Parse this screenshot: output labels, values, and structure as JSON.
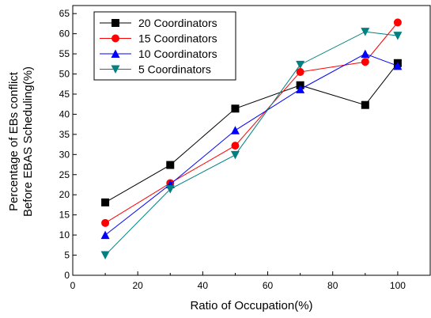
{
  "chart_data": {
    "type": "line",
    "xlabel": "Ratio of Occupation(%)",
    "ylabel_lines": [
      "Percentage of EBs conflict",
      "Before EBAS Scheduling(%)"
    ],
    "xlim": [
      0,
      110
    ],
    "ylim": [
      0,
      67
    ],
    "x_ticks": [
      0,
      20,
      40,
      60,
      80,
      100
    ],
    "y_ticks": [
      0,
      5,
      10,
      15,
      20,
      25,
      30,
      35,
      40,
      45,
      50,
      55,
      60,
      65
    ],
    "x_tick_labels": [
      "0",
      "20",
      "40",
      "60",
      "80",
      "100"
    ],
    "y_tick_labels": [
      "0",
      "5",
      "10",
      "15",
      "20",
      "25",
      "30",
      "35",
      "40",
      "45",
      "50",
      "55",
      "60",
      "65"
    ],
    "x": [
      10,
      30,
      50,
      70,
      90,
      100
    ],
    "legend_position": "top-left",
    "grid": false,
    "series": [
      {
        "name": "20 Coordinators",
        "color": "#000000",
        "marker": "square",
        "values": [
          18.1,
          27.4,
          41.4,
          47.2,
          42.3,
          52.7
        ]
      },
      {
        "name": "15 Coordinators",
        "color": "#ff0000",
        "marker": "circle",
        "values": [
          13.0,
          22.9,
          32.2,
          50.5,
          53.0,
          62.8
        ]
      },
      {
        "name": "10 Coordinators",
        "color": "#0000ff",
        "marker": "triangle-up",
        "values": [
          10.0,
          22.6,
          36.0,
          46.2,
          55.0,
          52.0
        ]
      },
      {
        "name": "5 Coordinators",
        "color": "#008080",
        "marker": "triangle-down",
        "values": [
          5.0,
          21.4,
          29.9,
          52.3,
          60.5,
          59.5
        ]
      }
    ]
  }
}
